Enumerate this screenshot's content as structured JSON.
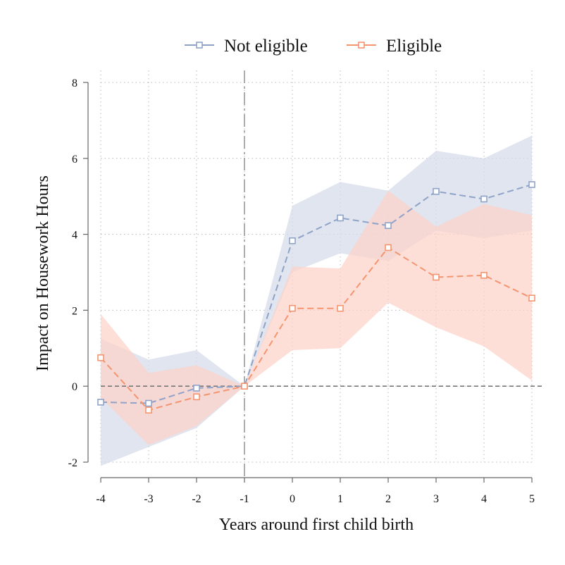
{
  "chart_data": {
    "type": "line",
    "title": "",
    "xlabel": "Years around first child birth",
    "ylabel": "Impact on Housework Hours",
    "x": [
      -4,
      -3,
      -2,
      -1,
      0,
      1,
      2,
      3,
      4,
      5
    ],
    "xlim": [
      -4,
      5
    ],
    "ylim": [
      -2,
      8
    ],
    "xticks": [
      -4,
      -3,
      -2,
      -1,
      0,
      1,
      2,
      3,
      4,
      5
    ],
    "yticks": [
      -2,
      0,
      2,
      4,
      6,
      8
    ],
    "grid": true,
    "legend_position": "top",
    "reference_lines": {
      "vertical_x": -1,
      "horizontal_y": 0
    },
    "series": [
      {
        "name": "Not eligible",
        "color": "#8fa3c8",
        "band_color": "#d5dcea",
        "values": [
          -0.42,
          -0.45,
          -0.05,
          0,
          3.83,
          4.43,
          4.23,
          5.13,
          4.93,
          5.31
        ],
        "ci_low": [
          -2.1,
          -1.6,
          -1.1,
          0,
          3.0,
          3.5,
          3.3,
          4.1,
          3.9,
          4.1
        ],
        "ci_high": [
          1.25,
          0.7,
          0.95,
          0,
          4.75,
          5.38,
          5.15,
          6.2,
          6.0,
          6.6
        ]
      },
      {
        "name": "Eligible",
        "color": "#f4956f",
        "band_color": "#fdd2c7",
        "values": [
          0.75,
          -0.63,
          -0.28,
          0,
          2.05,
          2.05,
          3.65,
          2.87,
          2.92,
          2.32
        ],
        "ci_low": [
          -0.3,
          -1.55,
          -1.05,
          0,
          0.95,
          1.0,
          2.2,
          1.55,
          1.05,
          0.15
        ],
        "ci_high": [
          1.9,
          0.35,
          0.55,
          0,
          3.15,
          3.1,
          5.15,
          4.2,
          4.8,
          4.5
        ]
      }
    ]
  }
}
